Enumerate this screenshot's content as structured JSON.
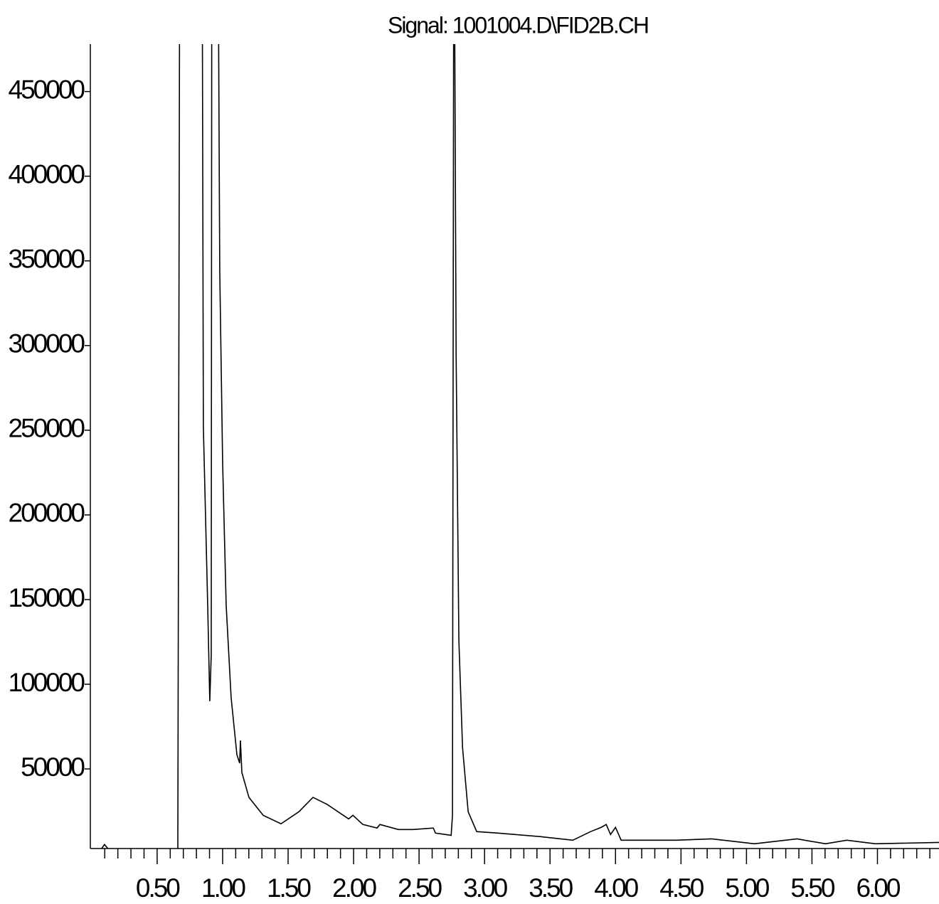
{
  "chart_data": {
    "type": "line",
    "title": "Signal: 1001004.D\\FID2B.CH",
    "x": [
      0.076,
      0.098,
      0.125,
      0.658,
      0.674,
      0.842,
      0.853,
      0.886,
      0.902,
      0.913,
      0.918,
      0.962,
      0.978,
      1.0,
      1.027,
      1.065,
      1.109,
      1.13,
      1.136,
      1.147,
      1.201,
      1.31,
      1.446,
      1.582,
      1.69,
      1.799,
      1.962,
      1.995,
      2.071,
      2.179,
      2.201,
      2.342,
      2.451,
      2.609,
      2.625,
      2.745,
      2.755,
      2.766,
      2.783,
      2.804,
      2.832,
      2.875,
      2.94,
      3.103,
      3.429,
      3.674,
      3.81,
      3.891,
      3.929,
      3.962,
      4.0,
      4.043,
      4.462,
      4.734,
      5.06,
      5.386,
      5.603,
      5.766,
      5.984,
      6.473
    ],
    "values": [
      2900,
      5400,
      2900,
      2900,
      600000,
      600000,
      252000,
      146800,
      90000,
      117000,
      600000,
      600000,
      344700,
      231000,
      146800,
      92100,
      58400,
      53400,
      66800,
      47900,
      33200,
      22600,
      17600,
      24700,
      33200,
      29000,
      20500,
      22600,
      17200,
      15100,
      17200,
      14200,
      14200,
      15100,
      12100,
      10800,
      22600,
      600000,
      294000,
      125800,
      62600,
      24700,
      13000,
      12100,
      10000,
      7900,
      13000,
      15500,
      17200,
      11300,
      15500,
      7900,
      7900,
      8700,
      5800,
      8700,
      5800,
      7900,
      5800,
      6600
    ],
    "color": "#000000",
    "xlim": [
      -0.01,
      6.47
    ],
    "ylim": [
      3000,
      478000
    ],
    "xticks": [
      {
        "value": 0.5,
        "label": "0.50"
      },
      {
        "value": 1,
        "label": "1.00"
      },
      {
        "value": 1.5,
        "label": "1.50"
      },
      {
        "value": 2,
        "label": "2.00"
      },
      {
        "value": 2.5,
        "label": "2.50"
      },
      {
        "value": 3,
        "label": "3.00"
      },
      {
        "value": 3.5,
        "label": "3.50"
      },
      {
        "value": 4,
        "label": "4.00"
      },
      {
        "value": 4.5,
        "label": "4.50"
      },
      {
        "value": 5,
        "label": "5.00"
      },
      {
        "value": 5.5,
        "label": "5.50"
      },
      {
        "value": 6,
        "label": "6.00"
      }
    ],
    "xminorticks": [
      0.1,
      0.2,
      0.3,
      0.4,
      0.6,
      0.7,
      0.8,
      0.9,
      1.1,
      1.2,
      1.3,
      1.4,
      1.6,
      1.7,
      1.8,
      1.9,
      2.1,
      2.2,
      2.3,
      2.4,
      2.6,
      2.7,
      2.8,
      2.9,
      3.1,
      3.2,
      3.3,
      3.4,
      3.6,
      3.7,
      3.8,
      3.9,
      4.1,
      4.2,
      4.3,
      4.4,
      4.6,
      4.7,
      4.8,
      4.9,
      5.1,
      5.2,
      5.3,
      5.4,
      5.6,
      5.7,
      5.8,
      5.9,
      6.1,
      6.2,
      6.3,
      6.4
    ],
    "yticks": [
      50000,
      100000,
      150000,
      200000,
      250000,
      300000,
      350000,
      400000,
      450000
    ]
  }
}
